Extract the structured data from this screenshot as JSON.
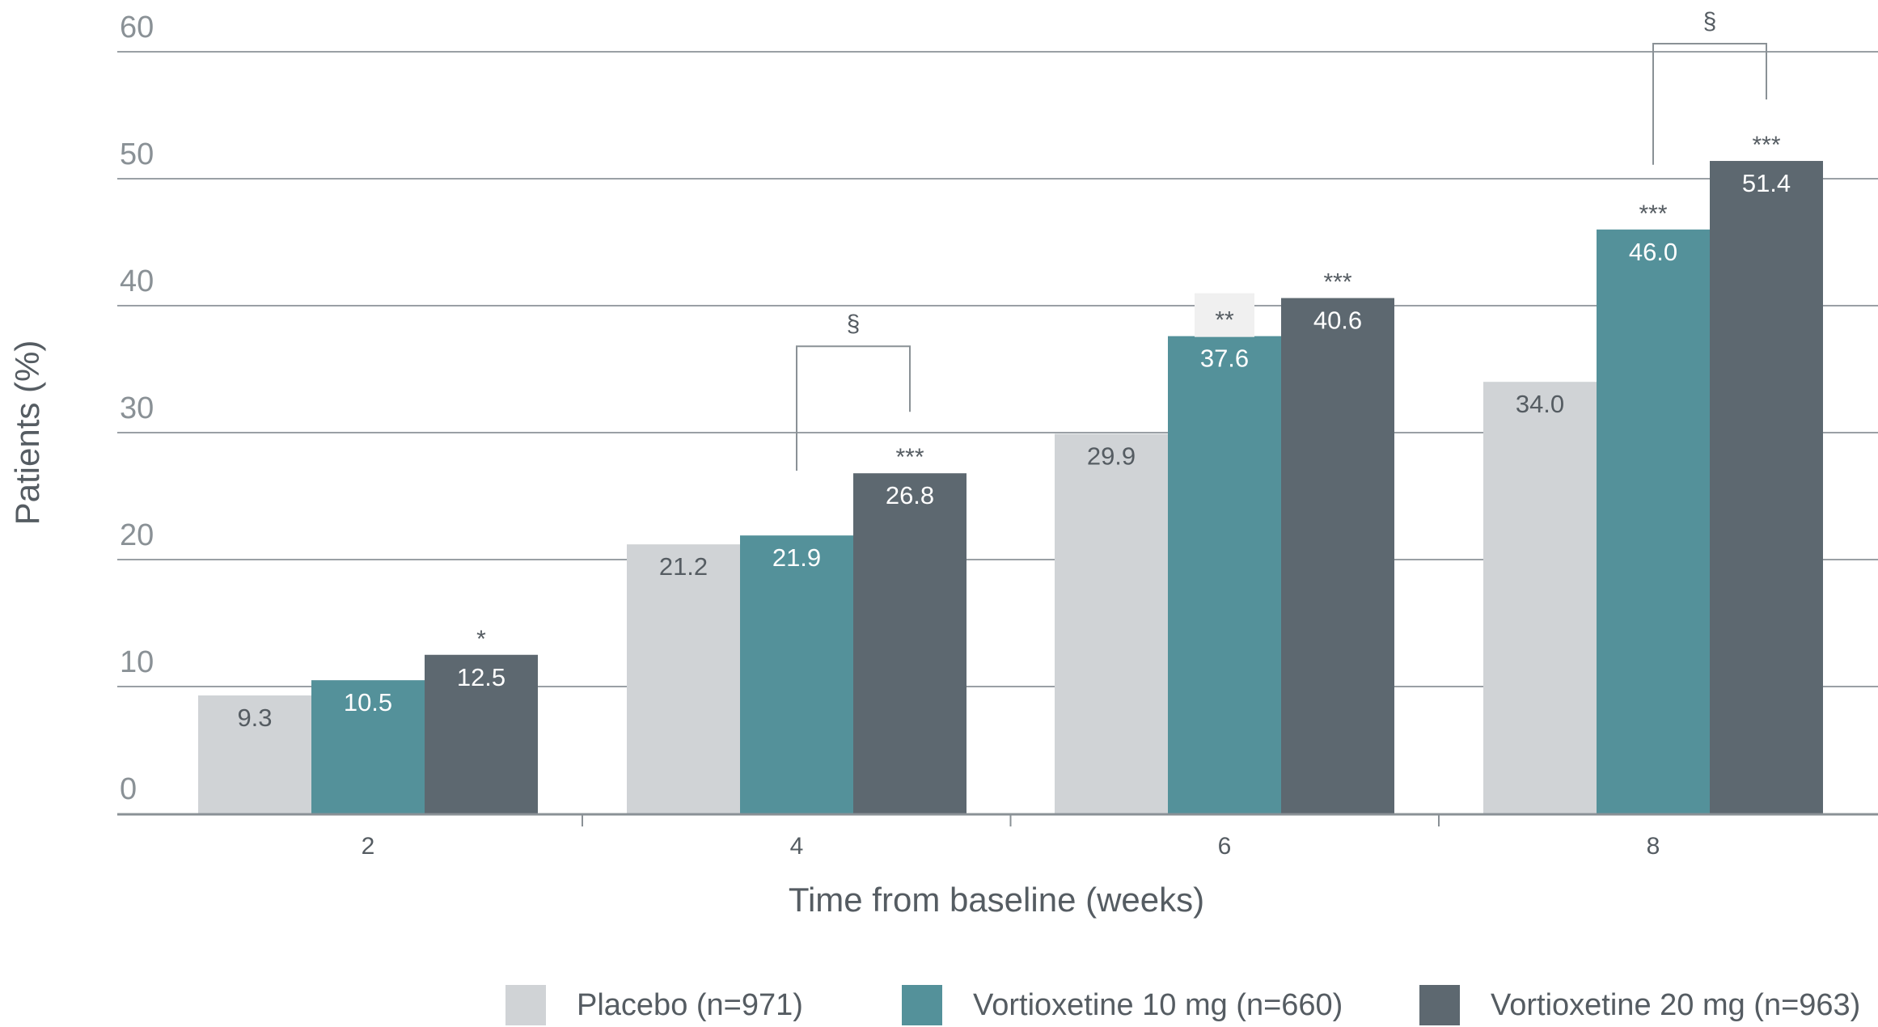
{
  "chart_data": {
    "type": "bar",
    "ylabel": "Patients (%)",
    "xlabel": "Time from baseline (weeks)",
    "ylim": [
      0,
      60
    ],
    "yticks": [
      0,
      10,
      20,
      30,
      40,
      50,
      60
    ],
    "grid": true,
    "legend_position": "bottom",
    "categories": [
      "2",
      "4",
      "6",
      "8"
    ],
    "series": [
      {
        "name": "Placebo (n=971)",
        "color": "#d0d3d6",
        "label_color": "#555c62",
        "values": [
          9.3,
          21.2,
          29.9,
          34.0
        ],
        "value_labels": [
          "9.3",
          "21.2",
          "29.9",
          "34.0"
        ],
        "significance": [
          "",
          "",
          "",
          ""
        ]
      },
      {
        "name": "Vortioxetine 10 mg (n=660)",
        "color": "#54919a",
        "label_color": "#ffffff",
        "values": [
          10.5,
          21.9,
          37.6,
          46.0
        ],
        "value_labels": [
          "10.5",
          "21.9",
          "37.6",
          "46.0"
        ],
        "significance": [
          "",
          "",
          "**",
          "***"
        ]
      },
      {
        "name": "Vortioxetine 20 mg (n=963)",
        "color": "#5d6870",
        "label_color": "#ffffff",
        "values": [
          12.5,
          26.8,
          40.6,
          51.4
        ],
        "value_labels": [
          "12.5",
          "26.8",
          "40.6",
          "51.4"
        ],
        "significance": [
          "*",
          "***",
          "***",
          "***"
        ]
      }
    ],
    "comparisons": [
      {
        "category": "4",
        "between": [
          "Vortioxetine 10 mg (n=660)",
          "Vortioxetine 20 mg (n=963)"
        ],
        "symbol": "§"
      },
      {
        "category": "8",
        "between": [
          "Vortioxetine 10 mg (n=660)",
          "Vortioxetine 20 mg (n=963)"
        ],
        "symbol": "§"
      }
    ]
  }
}
